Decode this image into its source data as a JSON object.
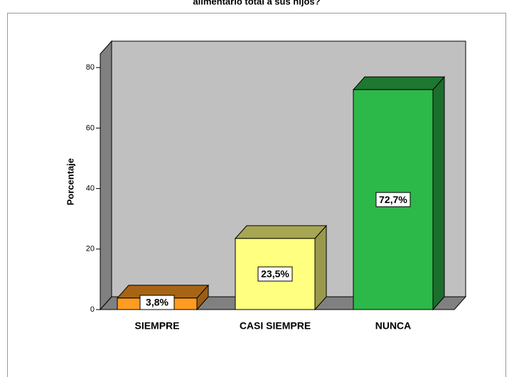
{
  "chart_data": {
    "type": "bar3d",
    "title": "alimentario total a sus hijos?",
    "categories": [
      "SIEMPRE",
      "CASI SIEMPRE",
      "NUNCA"
    ],
    "values": [
      3.8,
      23.5,
      72.7
    ],
    "value_labels": [
      "3,8%",
      "23,5%",
      "72,7%"
    ],
    "colors": [
      "#ff9c21",
      "#ffff80",
      "#2db84a"
    ],
    "ylabel": "Porcentaje",
    "ylim": [
      0,
      84.5
    ],
    "yticks": [
      0,
      20,
      40,
      60,
      80
    ]
  }
}
